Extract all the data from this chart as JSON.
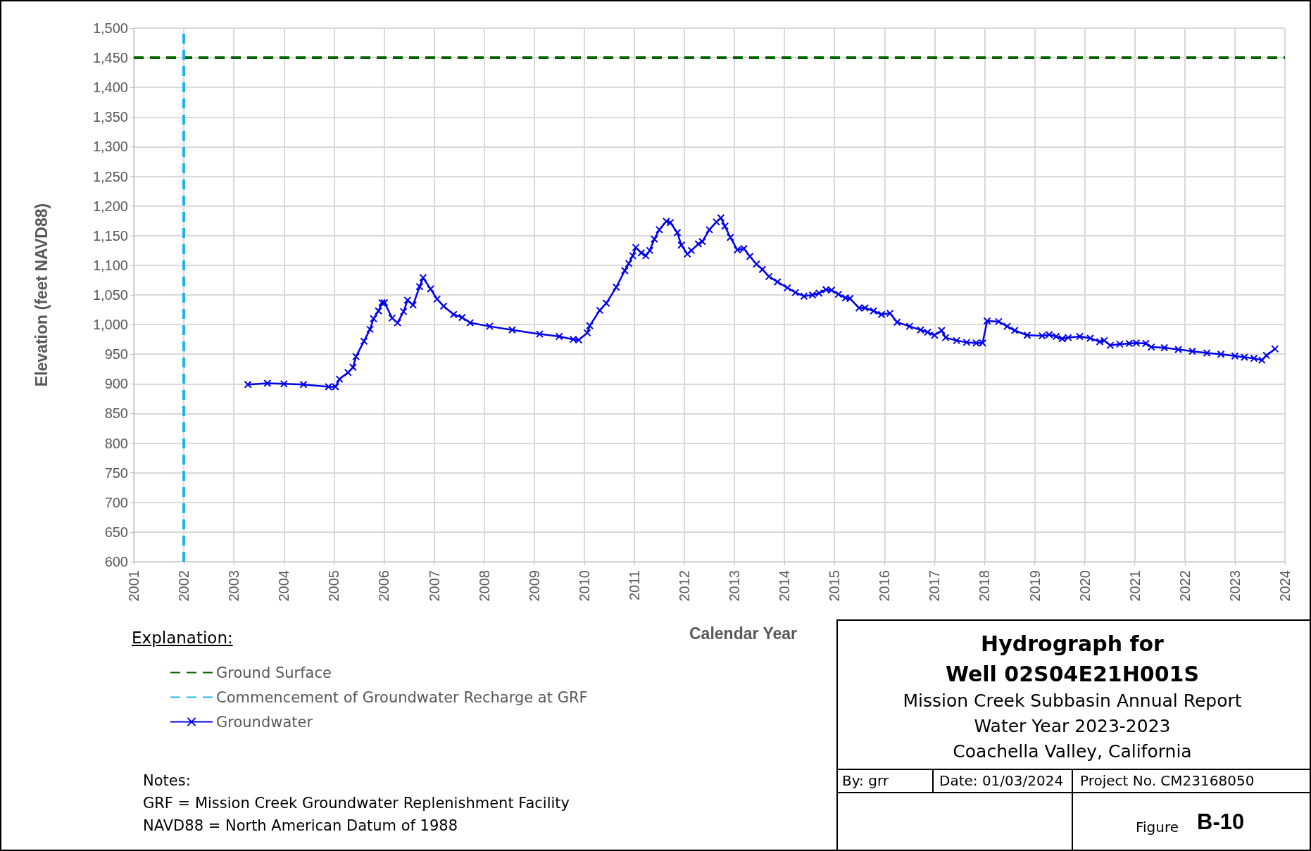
{
  "chart_data": {
    "type": "line",
    "title": "Hydrograph for\nWell 02S04E21H001S",
    "subtitle": "Mission Creek Subbasin Annual Report\nWater Year 2023-2023\nCoachella Valley, California",
    "xlabel": "Calendar Year",
    "ylabel": "Elevation (feet NAVD88)",
    "legend_title": "Explanation:",
    "legend": "bottom left",
    "grid": true,
    "marker": "cross",
    "line_style": "solid",
    "annotations": [
      "Notes:",
      "GRF = Mission Creek Groundwater Replenishment Facility",
      "NAVD88 = North American Datum of 1988",
      "By: grr",
      "Date:  01/03/2024",
      "Project No. CM23168050",
      "Figure",
      "B-10"
    ],
    "xlim": [
      2001,
      2024
    ],
    "xticks": [
      2001,
      2002,
      2003,
      2004,
      2005,
      2006,
      2007,
      2008,
      2009,
      2010,
      2011,
      2012,
      2013,
      2014,
      2015,
      2016,
      2017,
      2018,
      2019,
      2020,
      2021,
      2022,
      2023,
      2024
    ],
    "ylim": [
      600,
      1500
    ],
    "yticks": [
      600,
      650,
      700,
      750,
      800,
      850,
      900,
      950,
      {
        "value": 1000,
        "label": "1,000"
      },
      {
        "value": 1050,
        "label": "1,050"
      },
      {
        "value": 1100,
        "label": "1,100"
      },
      {
        "value": 1150,
        "label": "1,150"
      },
      {
        "value": 1200,
        "label": "1,200"
      },
      {
        "value": 1250,
        "label": "1,250"
      },
      {
        "value": 1300,
        "label": "1,300"
      },
      {
        "value": 1350,
        "label": "1,350"
      },
      {
        "value": 1400,
        "label": "1,400"
      },
      {
        "value": 1450,
        "label": "1,450"
      },
      {
        "value": 1500,
        "label": "1,500"
      }
    ],
    "ref_lines": [
      {
        "axis": "y",
        "value": 1450,
        "label": "Ground Surface",
        "color": "#006400",
        "line_style": "dashed"
      },
      {
        "axis": "x",
        "value": 2002,
        "label": "Commencement of Groundwater Recharge at GRF",
        "color": "#1fb4e6",
        "line_style": "dashed"
      }
    ],
    "series": [
      {
        "name": "Groundwater",
        "color": "#0000ee",
        "x": [
          2003.28,
          2003.67,
          2004,
          2004.39,
          2004.89,
          2005.03,
          2005.11,
          2005.28,
          2005.38,
          2005.44,
          2005.6,
          2005.72,
          2005.79,
          2005.89,
          2005.96,
          2006.01,
          2006.16,
          2006.27,
          2006.39,
          2006.47,
          2006.58,
          2006.71,
          2006.78,
          2006.93,
          2007.06,
          2007.19,
          2007.39,
          2007.56,
          2007.72,
          2008.11,
          2008.56,
          2009.11,
          2009.5,
          2009.78,
          2009.89,
          2010.06,
          2010.11,
          2010.31,
          2010.44,
          2010.64,
          2010.81,
          2010.89,
          2010.97,
          2011.03,
          2011.14,
          2011.23,
          2011.31,
          2011.4,
          2011.5,
          2011.64,
          2011.72,
          2011.86,
          2011.94,
          2012.06,
          2012.14,
          2012.28,
          2012.36,
          2012.5,
          2012.64,
          2012.73,
          2012.81,
          2012.92,
          2013.06,
          2013.19,
          2013.31,
          2013.44,
          2013.56,
          2013.69,
          2013.86,
          2014.06,
          2014.22,
          2014.39,
          2014.56,
          2014.69,
          2014.83,
          2014.94,
          2015.08,
          2015.22,
          2015.31,
          2015.49,
          2015.61,
          2015.78,
          2015.94,
          2016.11,
          2016.25,
          2016.5,
          2016.72,
          2016.86,
          2017,
          2017.14,
          2017.22,
          2017.44,
          2017.64,
          2017.83,
          2017.96,
          2018.05,
          2018.28,
          2018.45,
          2018.6,
          2018.85,
          2019.15,
          2019.29,
          2019.43,
          2019.55,
          2019.67,
          2019.9,
          2020.11,
          2020.3,
          2020.39,
          2020.51,
          2020.7,
          2020.89,
          2021.03,
          2021.22,
          2021.33,
          2021.59,
          2021.87,
          2022.15,
          2022.44,
          2022.72,
          2023,
          2023.19,
          2023.38,
          2023.54,
          2023.63,
          2023.8
        ],
        "values": [
          899,
          901,
          900,
          899,
          895,
          895,
          908,
          919,
          928,
          946,
          972,
          992,
          1010,
          1023,
          1037,
          1037,
          1011,
          1003,
          1022,
          1041,
          1033,
          1064,
          1079,
          1060,
          1043,
          1031,
          1017,
          1012,
          1003,
          997,
          991,
          984,
          980,
          975,
          974,
          986,
          998,
          1024,
          1036,
          1063,
          1091,
          1103,
          1116,
          1130,
          1121,
          1116,
          1125,
          1144,
          1160,
          1174,
          1172,
          1155,
          1134,
          1119,
          1125,
          1136,
          1140,
          1160,
          1173,
          1180,
          1166,
          1147,
          1126,
          1128,
          1115,
          1102,
          1093,
          1081,
          1072,
          1062,
          1054,
          1048,
          1050,
          1053,
          1059,
          1058,
          1051,
          1045,
          1044,
          1028,
          1028,
          1023,
          1017,
          1019,
          1004,
          997,
          991,
          987,
          982,
          990,
          978,
          973,
          970,
          969,
          969,
          1006,
          1005,
          997,
          990,
          982,
          981,
          983,
          980,
          976,
          978,
          980,
          977,
          971,
          973,
          965,
          967,
          968,
          969,
          968,
          962,
          961,
          958,
          955,
          952,
          950,
          947,
          945,
          943,
          940,
          948,
          959
        ]
      }
    ]
  }
}
